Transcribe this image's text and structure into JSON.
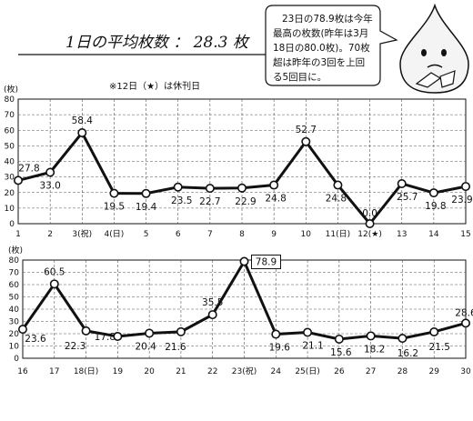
{
  "header": {
    "title": "1日の平均枚数 ： 28.3 枚",
    "note": "※12日（★）は休刊日",
    "bubble_lines": [
      "23日の78.9枚は今年",
      "最高の枚数(昨年は3月",
      "18日の80.0枚)。70枚",
      "超は昨年の3回を上回",
      "る5回目に。"
    ]
  },
  "chart_data": [
    {
      "type": "line",
      "unit_label": "(枚)",
      "ylim": [
        0,
        80
      ],
      "yticks": [
        0,
        10,
        20,
        30,
        40,
        50,
        60,
        70,
        80
      ],
      "grid": true,
      "categories": [
        "1",
        "2",
        "3(祝)",
        "4(日)",
        "5",
        "6",
        "7",
        "8",
        "9",
        "10",
        "11(日)",
        "12(★)",
        "13",
        "14",
        "15"
      ],
      "values": [
        27.8,
        33.0,
        58.4,
        19.5,
        19.4,
        23.5,
        22.7,
        22.9,
        24.8,
        52.7,
        24.8,
        0.0,
        25.7,
        19.8,
        23.9
      ],
      "labels": [
        "27.8",
        "33.0",
        "58.4",
        "19.5",
        "19.4",
        "23.5",
        "22.7",
        "22.9",
        "24.8",
        "52.7",
        "24.8",
        "0.0",
        "25.7",
        "19.8",
        "23.9"
      ]
    },
    {
      "type": "line",
      "unit_label": "(枚)",
      "ylim": [
        0,
        80
      ],
      "yticks": [
        0,
        10,
        20,
        30,
        40,
        50,
        60,
        70,
        80
      ],
      "grid": true,
      "categories": [
        "16",
        "17",
        "18(日)",
        "19",
        "20",
        "21",
        "22",
        "23(祝)",
        "24",
        "25(日)",
        "26",
        "27",
        "28",
        "29",
        "30"
      ],
      "values": [
        23.6,
        60.5,
        22.3,
        17.8,
        20.4,
        21.6,
        35.5,
        78.9,
        19.6,
        21.1,
        15.6,
        18.2,
        16.2,
        21.5,
        28.6
      ],
      "labels": [
        "23.6",
        "60.5",
        "22.3",
        "17.8",
        "20.4",
        "21.6",
        "35.5",
        "78.9",
        "19.6",
        "21.1",
        "15.6",
        "18.2",
        "16.2",
        "21.5",
        "28.6"
      ],
      "boxed_label_index": 7
    }
  ]
}
